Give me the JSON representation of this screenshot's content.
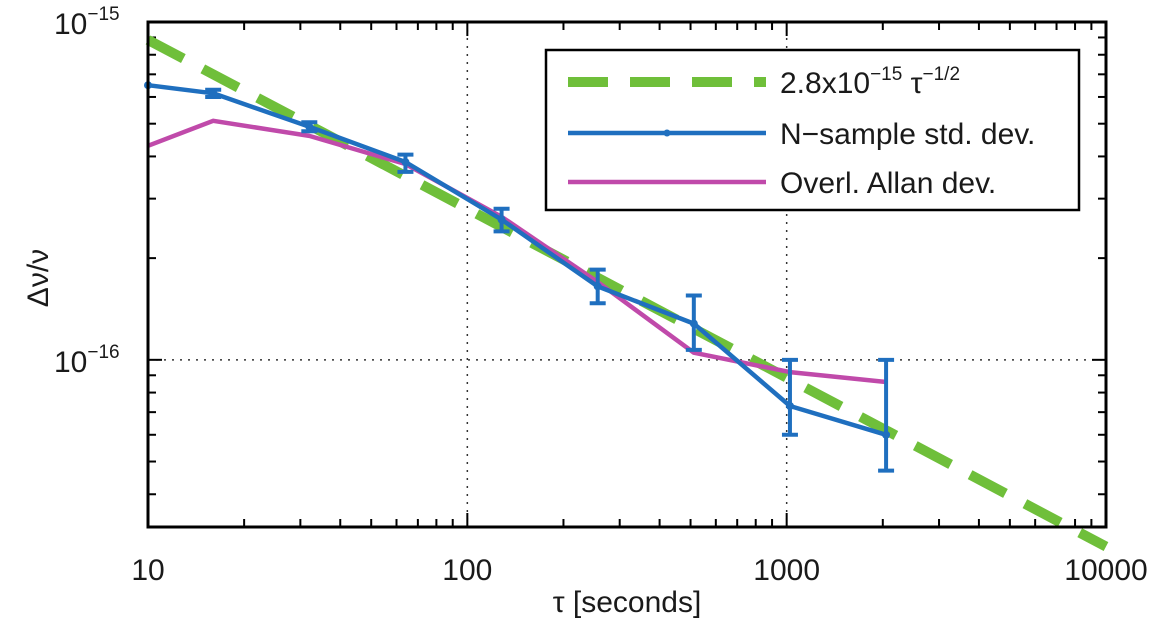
{
  "chart_data": {
    "type": "line",
    "title": "",
    "xlabel": "τ [seconds]",
    "ylabel": "Δν/ν",
    "x_scale": "log",
    "y_scale": "log",
    "xlim": [
      10,
      10000
    ],
    "ylim": [
      3.2e-17,
      1e-15
    ],
    "grid": true,
    "legend_position": "top-right",
    "x_ticks": [
      {
        "value": 10,
        "label": "10"
      },
      {
        "value": 100,
        "label": "100"
      },
      {
        "value": 1000,
        "label": "1000"
      },
      {
        "value": 10000,
        "label": "10000"
      }
    ],
    "y_ticks": [
      {
        "value": 1e-16,
        "base": "10",
        "exp": "−16"
      },
      {
        "value": 1e-15,
        "base": "10",
        "exp": "−15"
      }
    ],
    "series": [
      {
        "name": "N−sample std. dev.",
        "legend_text": "N−sample std. dev.",
        "color": "#1f6fbf",
        "style": "solid-marker",
        "x": [
          10,
          16,
          32,
          64,
          128,
          256,
          512,
          1024,
          2048
        ],
        "y": [
          6.5e-16,
          6.15e-16,
          4.9e-16,
          3.85e-16,
          2.6e-16,
          1.65e-16,
          1.28e-16,
          7.3e-17,
          6e-17
        ],
        "y_err_low": [
          null,
          6e-16,
          4.75e-16,
          3.6e-16,
          2.4e-16,
          1.47e-16,
          1.07e-16,
          6e-17,
          4.7e-17
        ],
        "y_err_high": [
          null,
          6.3e-16,
          5.05e-16,
          4.05e-16,
          2.8e-16,
          1.85e-16,
          1.55e-16,
          1e-16,
          1e-16
        ]
      },
      {
        "name": "Overl. Allan dev.",
        "legend_text": "Overl. Allan dev.",
        "color": "#c04aaa",
        "style": "solid",
        "x": [
          10,
          16,
          32,
          64,
          128,
          256,
          512,
          1024,
          2048
        ],
        "y": [
          4.3e-16,
          5.1e-16,
          4.6e-16,
          3.8e-16,
          2.65e-16,
          1.7e-16,
          1.05e-16,
          9.2e-17,
          8.6e-17
        ]
      },
      {
        "name": "2.8x10−15 τ−1/2",
        "legend_base": "2.8x10",
        "legend_exp1": "−15",
        "legend_mid": " τ",
        "legend_exp2": "−1/2",
        "color": "#6fbf3a",
        "style": "dashed",
        "x": [
          10,
          10000
        ],
        "y": [
          8.85e-16,
          2.8e-17
        ]
      }
    ]
  }
}
